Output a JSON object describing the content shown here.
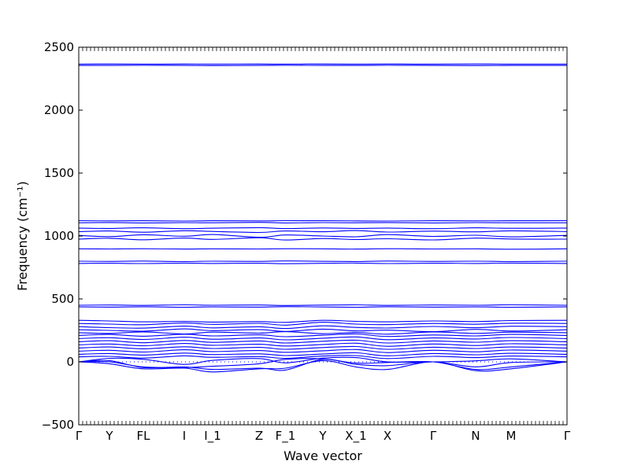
{
  "chart_data": {
    "type": "line",
    "xlabel": "Wave vector",
    "ylabel": "Frequency (cm⁻¹)",
    "ylim": [
      -500,
      2500
    ],
    "yticks": [
      -500,
      0,
      500,
      1000,
      1500,
      2000,
      2500
    ],
    "kpath": [
      "Γ",
      "Y",
      "FL",
      "I",
      "I_1",
      "Z",
      "F_1",
      "Y",
      "X_1",
      "X",
      "Γ",
      "N",
      "M",
      "Γ"
    ],
    "kpath_pos": [
      0,
      0.0629,
      0.1323,
      0.2161,
      0.2742,
      0.3694,
      0.4234,
      0.5,
      0.5677,
      0.6323,
      0.7258,
      0.8129,
      0.8855,
      1.0
    ],
    "grid": false,
    "line_color": "#0000ff",
    "series": [
      {
        "values": [
          2355,
          2355,
          2356,
          2355,
          2354,
          2355,
          2356,
          2355,
          2355,
          2356,
          2355,
          2354,
          2355,
          2355
        ]
      },
      {
        "values": [
          2365,
          2366,
          2365,
          2366,
          2365,
          2366,
          2365,
          2366,
          2365,
          2366,
          2365,
          2366,
          2365,
          2365
        ]
      },
      {
        "values": [
          1122,
          1120,
          1121,
          1119,
          1121,
          1120,
          1122,
          1121,
          1120,
          1119,
          1121,
          1120,
          1121,
          1122
        ]
      },
      {
        "values": [
          1105,
          1107,
          1104,
          1106,
          1105,
          1108,
          1104,
          1106,
          1105,
          1107,
          1104,
          1106,
          1105,
          1105
        ]
      },
      {
        "values": [
          1063,
          1060,
          1065,
          1058,
          1062,
          1066,
          1059,
          1064,
          1060,
          1063,
          1058,
          1065,
          1061,
          1063
        ]
      },
      {
        "values": [
          1035,
          1040,
          1030,
          1042,
          1036,
          1028,
          1040,
          1034,
          1043,
          1031,
          1039,
          1033,
          1041,
          1035
        ]
      },
      {
        "values": [
          1005,
          995,
          1010,
          998,
          1012,
          990,
          1008,
          1000,
          994,
          1011,
          997,
          1006,
          993,
          1005
        ]
      },
      {
        "values": [
          975,
          982,
          970,
          984,
          973,
          986,
          968,
          980,
          972,
          978,
          969,
          983,
          976,
          975
        ]
      },
      {
        "values": [
          898,
          897,
          899,
          896,
          898,
          897,
          899,
          898,
          896,
          899,
          897,
          898,
          895,
          898
        ]
      },
      {
        "values": [
          800,
          798,
          801,
          797,
          800,
          798,
          802,
          799,
          797,
          801,
          798,
          800,
          797,
          800
        ]
      },
      {
        "values": [
          782,
          784,
          781,
          785,
          782,
          784,
          780,
          783,
          785,
          781,
          784,
          782,
          785,
          782
        ]
      },
      {
        "values": [
          450,
          452,
          449,
          453,
          450,
          452,
          448,
          451,
          453,
          449,
          452,
          450,
          453,
          450
        ]
      },
      {
        "values": [
          437,
          435,
          438,
          434,
          437,
          435,
          439,
          436,
          434,
          438,
          435,
          437,
          434,
          437
        ]
      },
      {
        "values": [
          330,
          325,
          318,
          322,
          316,
          320,
          314,
          330,
          322,
          318,
          325,
          320,
          328,
          330
        ]
      },
      {
        "values": [
          305,
          300,
          295,
          310,
          298,
          306,
          292,
          315,
          300,
          296,
          305,
          299,
          307,
          305
        ]
      },
      {
        "values": [
          280,
          272,
          268,
          284,
          270,
          279,
          265,
          286,
          274,
          269,
          281,
          271,
          283,
          280
        ]
      },
      {
        "values": [
          255,
          250,
          244,
          262,
          248,
          257,
          242,
          260,
          246,
          252,
          240,
          258,
          245,
          255
        ]
      },
      {
        "values": [
          232,
          226,
          238,
          222,
          236,
          228,
          240,
          224,
          234,
          220,
          238,
          226,
          236,
          232
        ]
      },
      {
        "values": [
          210,
          218,
          204,
          220,
          206,
          215,
          200,
          212,
          222,
          202,
          214,
          206,
          218,
          210
        ]
      },
      {
        "values": [
          185,
          192,
          178,
          196,
          180,
          190,
          175,
          188,
          198,
          176,
          190,
          182,
          194,
          185
        ]
      },
      {
        "values": [
          160,
          168,
          152,
          170,
          155,
          166,
          150,
          164,
          172,
          150,
          166,
          156,
          168,
          160
        ]
      },
      {
        "values": [
          135,
          142,
          128,
          146,
          132,
          140,
          126,
          138,
          148,
          124,
          142,
          130,
          144,
          135
        ]
      },
      {
        "values": [
          110,
          118,
          104,
          120,
          106,
          115,
          100,
          114,
          122,
          100,
          116,
          106,
          118,
          110
        ]
      },
      {
        "values": [
          85,
          92,
          78,
          96,
          82,
          90,
          76,
          88,
          98,
          74,
          92,
          80,
          94,
          85
        ]
      },
      {
        "values": [
          60,
          66,
          54,
          70,
          58,
          64,
          50,
          62,
          72,
          48,
          66,
          56,
          68,
          60
        ]
      },
      {
        "values": [
          40,
          44,
          30,
          48,
          36,
          42,
          28,
          46,
          50,
          26,
          44,
          34,
          46,
          40
        ]
      },
      {
        "values": [
          0,
          28,
          20,
          -20,
          12,
          26,
          -8,
          30,
          34,
          0,
          0,
          8,
          24,
          0
        ]
      },
      {
        "values": [
          0,
          0,
          -40,
          -45,
          -35,
          -15,
          20,
          24,
          -10,
          -5,
          0,
          -60,
          -40,
          0
        ]
      },
      {
        "values": [
          0,
          10,
          -45,
          -40,
          -60,
          -50,
          -65,
          20,
          -20,
          -30,
          0,
          -40,
          -5,
          0
        ]
      },
      {
        "values": [
          0,
          -15,
          -55,
          -50,
          -80,
          -55,
          -50,
          10,
          -40,
          -60,
          0,
          -70,
          -55,
          0
        ]
      }
    ]
  }
}
